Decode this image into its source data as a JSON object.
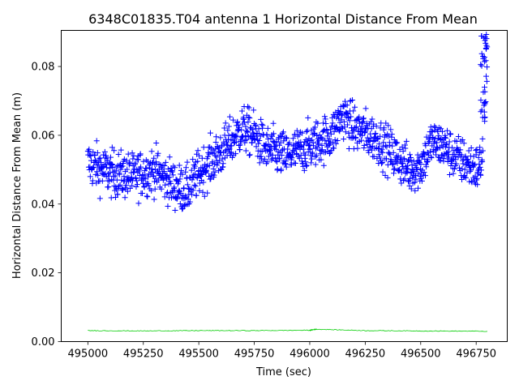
{
  "chart_data": {
    "type": "scatter",
    "title": "6348C01835.T04 antenna 1 Horizontal Distance From Mean",
    "xlabel": "Time (sec)",
    "ylabel": "Horizontal Distance From Mean (m)",
    "xlim": [
      494880,
      496890
    ],
    "ylim": [
      0,
      0.0905
    ],
    "xticks": [
      495000,
      495250,
      495500,
      495750,
      496000,
      496250,
      496500,
      496750
    ],
    "xtick_labels": [
      "495000",
      "495250",
      "495500",
      "495750",
      "496000",
      "496250",
      "496500",
      "496750"
    ],
    "yticks": [
      0.0,
      0.02,
      0.04,
      0.06,
      0.08
    ],
    "ytick_labels": [
      "0.00",
      "0.02",
      "0.04",
      "0.06",
      "0.08"
    ],
    "grid": false,
    "series": [
      {
        "marker": "plus",
        "color": "#0000ff",
        "trend": [
          [
            495000,
            0.052
          ],
          [
            495100,
            0.049
          ],
          [
            495200,
            0.048
          ],
          [
            495300,
            0.05
          ],
          [
            495400,
            0.045
          ],
          [
            495450,
            0.044
          ],
          [
            495500,
            0.049
          ],
          [
            495600,
            0.055
          ],
          [
            495700,
            0.062
          ],
          [
            495750,
            0.06
          ],
          [
            495800,
            0.056
          ],
          [
            495900,
            0.054
          ],
          [
            496000,
            0.057
          ],
          [
            496100,
            0.06
          ],
          [
            496150,
            0.066
          ],
          [
            496200,
            0.062
          ],
          [
            496300,
            0.059
          ],
          [
            496400,
            0.053
          ],
          [
            496450,
            0.05
          ],
          [
            496500,
            0.051
          ],
          [
            496550,
            0.058
          ],
          [
            496600,
            0.057
          ],
          [
            496650,
            0.054
          ],
          [
            496700,
            0.052
          ],
          [
            496760,
            0.05
          ],
          [
            496780,
            0.055
          ]
        ],
        "spread": 0.0055,
        "x_start": 495000,
        "x_end": 496780,
        "n_points": 1300,
        "burst": {
          "x_range": [
            496770,
            496800
          ],
          "y_range": [
            0.063,
            0.091
          ],
          "n_points": 40
        }
      },
      {
        "marker": "line",
        "color": "#00cc00",
        "x": [
          495000,
          495250,
          495500,
          495750,
          496000,
          496030,
          496250,
          496500,
          496800
        ],
        "y": [
          0.0032,
          0.0031,
          0.0032,
          0.0032,
          0.0033,
          0.0036,
          0.0032,
          0.0031,
          0.003
        ]
      }
    ]
  }
}
